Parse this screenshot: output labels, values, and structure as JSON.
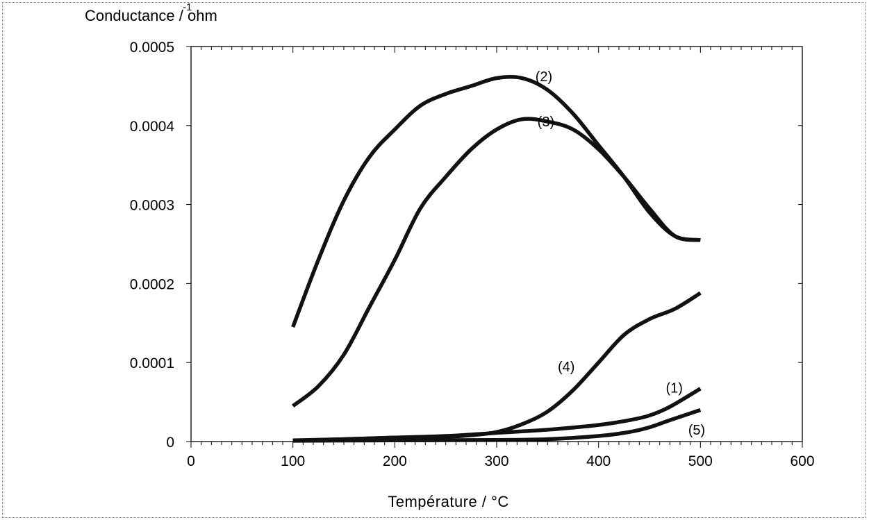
{
  "chart_data": {
    "type": "line",
    "ylabel": "Conductance / ohm",
    "ylabel_superscript": "-1",
    "xlabel": "Température / °C",
    "xlim": [
      0,
      600
    ],
    "ylim": [
      0,
      0.0005
    ],
    "x_ticks": [
      "0",
      "100",
      "200",
      "300",
      "400",
      "500",
      "600"
    ],
    "y_ticks": [
      "0",
      "0.0001",
      "0.0002",
      "0.0003",
      "0.0004",
      "0.0005"
    ],
    "grid": false,
    "legend": "none",
    "series": [
      {
        "name": "(1)",
        "x": [
          100,
          150,
          200,
          250,
          300,
          350,
          400,
          430,
          450,
          470,
          500
        ],
        "y": [
          1.5e-06,
          3e-06,
          5e-06,
          7e-06,
          1.1e-05,
          1.5e-05,
          2.1e-05,
          2.7e-05,
          3.3e-05,
          4.4e-05,
          6.7e-05
        ]
      },
      {
        "name": "(2)",
        "x": [
          100,
          125,
          150,
          175,
          200,
          225,
          250,
          275,
          300,
          325,
          350,
          375,
          400,
          425,
          450,
          475,
          500
        ],
        "y": [
          0.000145,
          0.00023,
          0.000305,
          0.00036,
          0.000395,
          0.000425,
          0.00044,
          0.00045,
          0.00046,
          0.00046,
          0.000445,
          0.000415,
          0.000375,
          0.000335,
          0.00029,
          0.00026,
          0.000255
        ]
      },
      {
        "name": "(3)",
        "x": [
          100,
          125,
          150,
          175,
          200,
          225,
          250,
          275,
          300,
          325,
          350,
          375,
          400,
          425,
          450,
          475,
          500
        ],
        "y": [
          4.5e-05,
          7e-05,
          0.00011,
          0.00017,
          0.00023,
          0.000295,
          0.000335,
          0.00037,
          0.000395,
          0.000408,
          0.000405,
          0.000395,
          0.00037,
          0.000335,
          0.000295,
          0.00026,
          0.000255
        ]
      },
      {
        "name": "(4)",
        "x": [
          100,
          150,
          200,
          250,
          275,
          300,
          325,
          350,
          375,
          400,
          425,
          450,
          475,
          500
        ],
        "y": [
          1e-06,
          3e-06,
          5e-06,
          6e-06,
          8e-06,
          1.2e-05,
          2.2e-05,
          3.8e-05,
          6.5e-05,
          0.0001,
          0.000135,
          0.000155,
          0.000168,
          0.000188
        ]
      },
      {
        "name": "(5)",
        "x": [
          100,
          200,
          300,
          350,
          400,
          430,
          450,
          470,
          500
        ],
        "y": [
          1e-06,
          1.5e-06,
          2e-06,
          3e-06,
          7e-06,
          1.2e-05,
          1.8e-05,
          2.7e-05,
          4e-05
        ]
      }
    ],
    "annotations": [
      {
        "text": "(2)",
        "x": 338,
        "y": 0.000462
      },
      {
        "text": "(3)",
        "x": 340,
        "y": 0.000405
      },
      {
        "text": "(4)",
        "x": 360,
        "y": 9.5e-05
      },
      {
        "text": "(1)",
        "x": 466,
        "y": 6.8e-05
      },
      {
        "text": "(5)",
        "x": 488,
        "y": 1.5e-05
      }
    ]
  }
}
